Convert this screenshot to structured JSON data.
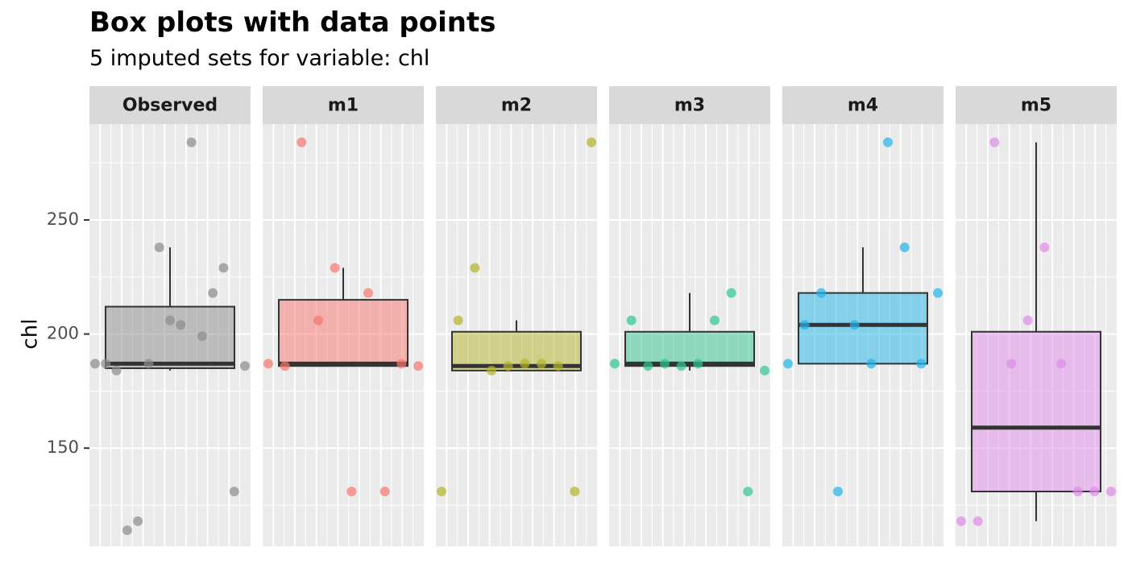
{
  "chart_data": {
    "type": "box",
    "title": "Box plots with data points",
    "subtitle": "5  imputed sets for variable:  chl",
    "ylabel": "chl",
    "xlabel": "",
    "ylim": [
      107,
      292
    ],
    "yticks": [
      150,
      200,
      250
    ],
    "grid": true,
    "colors": {
      "Observed": "#7f7f7f",
      "m1": "#f8766d",
      "m2": "#b79f00",
      "m3": "#00ba38",
      "m4": "#00bfc4",
      "m5": "#e76bf3"
    },
    "panels": [
      {
        "name": "Observed",
        "color": "#8c8c8c",
        "box": {
          "lower_whisker": 184,
          "q1": 185,
          "median": 187,
          "q3": 212,
          "upper_whisker": 238
        },
        "points": [
          187,
          187,
          184,
          114,
          118,
          187,
          238,
          206,
          204,
          284,
          199,
          218,
          229,
          131,
          186
        ]
      },
      {
        "name": "m1",
        "color": "#f8766d",
        "box": {
          "lower_whisker": 186,
          "q1": 186,
          "median": 187,
          "q3": 215,
          "upper_whisker": 229
        },
        "points": [
          187,
          186,
          284,
          206,
          229,
          131,
          218,
          131,
          187,
          186
        ]
      },
      {
        "name": "m2",
        "color": "#b4b42a",
        "box": {
          "lower_whisker": 184,
          "q1": 184,
          "median": 186,
          "q3": 201,
          "upper_whisker": 206
        },
        "points": [
          131,
          206,
          229,
          184,
          186,
          187,
          187,
          186,
          131,
          284
        ]
      },
      {
        "name": "m3",
        "color": "#2fc68e",
        "box": {
          "lower_whisker": 184,
          "q1": 186,
          "median": 187,
          "q3": 201,
          "upper_whisker": 218
        },
        "points": [
          187,
          206,
          186,
          187,
          186,
          187,
          206,
          218,
          131,
          184
        ]
      },
      {
        "name": "m4",
        "color": "#22b3e8",
        "box": {
          "lower_whisker": 187,
          "q1": 187,
          "median": 204,
          "q3": 218,
          "upper_whisker": 238
        },
        "points": [
          187,
          204,
          218,
          131,
          204,
          187,
          284,
          238,
          187,
          218
        ]
      },
      {
        "name": "m5",
        "color": "#e08bea",
        "box": {
          "lower_whisker": 118,
          "q1": 131,
          "median": 159,
          "q3": 201,
          "upper_whisker": 284
        },
        "points": [
          118,
          118,
          284,
          187,
          206,
          238,
          187,
          131,
          131,
          131
        ]
      }
    ]
  }
}
